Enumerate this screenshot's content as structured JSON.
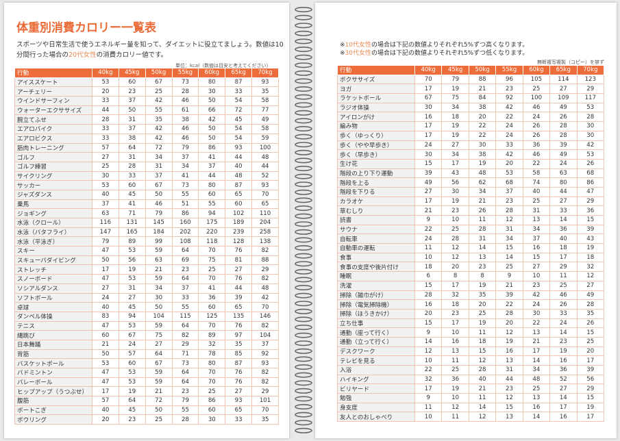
{
  "left_page": {
    "title": "体重別消費カロリー一覧表",
    "intro": [
      "スポーツや日常生活で使うエネルギー量を知って、ダイエットに役立てましょう。数値は10分間行った場合の",
      "20代女性",
      "の消費カロリー値です。"
    ],
    "unit": "単位：kcal（数値は目安と考えてください）",
    "table": {
      "header": [
        "行動",
        "40kg",
        "45kg",
        "50kg",
        "55kg",
        "60kg",
        "65kg",
        "70kg"
      ],
      "rows": [
        [
          "アイススケート",
          53,
          60,
          67,
          73,
          80,
          87,
          93
        ],
        [
          "アーチェリー",
          20,
          23,
          25,
          28,
          30,
          33,
          35
        ],
        [
          "ウインドサーフィン",
          33,
          37,
          42,
          46,
          50,
          54,
          58
        ],
        [
          "ウォーターエクササイズ",
          44,
          50,
          55,
          61,
          66,
          72,
          77
        ],
        [
          "腕立てふせ",
          28,
          31,
          35,
          38,
          42,
          45,
          49
        ],
        [
          "エアロバイク",
          33,
          37,
          42,
          46,
          50,
          54,
          58
        ],
        [
          "エアロビクス",
          33,
          38,
          42,
          46,
          50,
          54,
          59
        ],
        [
          "筋肉トレーニング",
          57,
          64,
          72,
          79,
          86,
          93,
          100
        ],
        [
          "ゴルフ",
          27,
          31,
          34,
          37,
          41,
          44,
          48
        ],
        [
          "ゴルフ練習",
          25,
          28,
          31,
          34,
          37,
          40,
          44
        ],
        [
          "サイクリング",
          30,
          33,
          37,
          41,
          44,
          48,
          52
        ],
        [
          "サッカー",
          53,
          60,
          67,
          73,
          80,
          87,
          93
        ],
        [
          "ジャズダンス",
          40,
          45,
          50,
          55,
          60,
          65,
          70
        ],
        [
          "乗馬",
          37,
          41,
          46,
          51,
          55,
          60,
          65
        ],
        [
          "ジョギング",
          63,
          71,
          79,
          86,
          94,
          102,
          110
        ],
        [
          "水泳（クロール）",
          116,
          131,
          145,
          160,
          175,
          189,
          204
        ],
        [
          "水泳（バタフライ）",
          147,
          165,
          184,
          202,
          220,
          239,
          258
        ],
        [
          "水泳（平泳ぎ）",
          79,
          89,
          99,
          108,
          118,
          128,
          138
        ],
        [
          "スキー",
          47,
          53,
          59,
          64,
          70,
          76,
          82
        ],
        [
          "スキューバダイビング",
          50,
          56,
          63,
          69,
          75,
          81,
          88
        ],
        [
          "ストレッチ",
          17,
          19,
          21,
          23,
          25,
          27,
          29
        ],
        [
          "スノーボード",
          47,
          53,
          59,
          64,
          70,
          76,
          82
        ],
        [
          "ソシアルダンス",
          27,
          31,
          34,
          37,
          41,
          44,
          48
        ],
        [
          "ソフトボール",
          24,
          27,
          30,
          33,
          36,
          39,
          42
        ],
        [
          "卓球",
          40,
          45,
          50,
          55,
          60,
          65,
          70
        ],
        [
          "ダンベル体操",
          83,
          94,
          104,
          115,
          125,
          135,
          146
        ],
        [
          "テニス",
          47,
          53,
          59,
          64,
          70,
          76,
          82
        ],
        [
          "縄跳び",
          60,
          67,
          75,
          82,
          89,
          97,
          104
        ],
        [
          "日本舞踊",
          21,
          24,
          27,
          29,
          32,
          35,
          37
        ],
        [
          "背筋",
          50,
          57,
          64,
          71,
          78,
          85,
          92
        ],
        [
          "バスケットボール",
          53,
          60,
          67,
          73,
          80,
          87,
          93
        ],
        [
          "バドミントン",
          47,
          53,
          59,
          64,
          70,
          76,
          82
        ],
        [
          "バレーボール",
          47,
          53,
          59,
          64,
          70,
          76,
          82
        ],
        [
          "ヒップアップ（うつぶせ）",
          17,
          19,
          21,
          23,
          25,
          27,
          29
        ],
        [
          "腹筋",
          57,
          64,
          72,
          79,
          86,
          93,
          101
        ],
        [
          "ボートこぎ",
          40,
          45,
          50,
          55,
          60,
          65,
          70
        ],
        [
          "ボウリング",
          20,
          23,
          25,
          28,
          30,
          33,
          35
        ]
      ]
    }
  },
  "right_page": {
    "notes": [
      [
        "※",
        "10代女性",
        "の場合は下記の数値よりそれぞれ5%ずつ高くなります。"
      ],
      [
        "※",
        "30代女性",
        "の場合は下記の数値よりそれぞれ5%ずつ低くなります。"
      ]
    ],
    "copyright": "無断複写複製（コピー）を禁ず",
    "table": {
      "header": [
        "行動",
        "40kg",
        "45kg",
        "50kg",
        "55kg",
        "60kg",
        "65kg",
        "70kg"
      ],
      "rows": [
        [
          "ボクササイズ",
          70,
          79,
          88,
          96,
          105,
          114,
          123
        ],
        [
          "ヨガ",
          17,
          19,
          21,
          23,
          25,
          27,
          29
        ],
        [
          "ラケットボール",
          67,
          75,
          84,
          92,
          100,
          109,
          117
        ],
        [
          "ラジオ体操",
          30,
          34,
          38,
          42,
          46,
          49,
          53
        ],
        [
          "アイロンがけ",
          16,
          18,
          20,
          22,
          24,
          26,
          28
        ],
        [
          "編み物",
          17,
          19,
          22,
          24,
          26,
          28,
          30
        ],
        [
          "歩く（ゆっくり）",
          17,
          19,
          22,
          24,
          26,
          28,
          30
        ],
        [
          "歩く（やや早歩き）",
          24,
          27,
          30,
          33,
          36,
          39,
          42
        ],
        [
          "歩く（早歩き）",
          30,
          34,
          38,
          42,
          46,
          49,
          53
        ],
        [
          "生け花",
          15,
          17,
          19,
          20,
          22,
          24,
          26
        ],
        [
          "階段の上り下り運動",
          39,
          43,
          48,
          53,
          58,
          63,
          68
        ],
        [
          "階段を上る",
          49,
          56,
          62,
          68,
          74,
          80,
          86
        ],
        [
          "階段を下りる",
          27,
          30,
          34,
          37,
          40,
          44,
          47
        ],
        [
          "カラオケ",
          17,
          19,
          21,
          23,
          25,
          27,
          29
        ],
        [
          "草むしり",
          21,
          23,
          26,
          28,
          31,
          33,
          36
        ],
        [
          "読書",
          9,
          10,
          11,
          12,
          13,
          14,
          15
        ],
        [
          "サウナ",
          22,
          25,
          28,
          31,
          34,
          36,
          39
        ],
        [
          "自転車",
          24,
          28,
          31,
          34,
          37,
          40,
          43
        ],
        [
          "自動車の運転",
          11,
          12,
          14,
          15,
          16,
          18,
          19
        ],
        [
          "食事",
          10,
          12,
          13,
          14,
          15,
          17,
          18
        ],
        [
          "食事の支度や後片付け",
          18,
          20,
          23,
          25,
          27,
          29,
          32
        ],
        [
          "睡眠",
          6,
          8,
          8,
          9,
          10,
          11,
          12
        ],
        [
          "洗濯",
          15,
          17,
          19,
          21,
          23,
          25,
          27
        ],
        [
          "掃除（雑巾がけ）",
          28,
          32,
          35,
          39,
          42,
          46,
          49
        ],
        [
          "掃除（電気掃除機）",
          16,
          18,
          20,
          22,
          24,
          26,
          28
        ],
        [
          "掃除（ほうきかけ）",
          20,
          23,
          25,
          28,
          30,
          33,
          35
        ],
        [
          "立ち仕事",
          15,
          17,
          19,
          20,
          22,
          24,
          26
        ],
        [
          "通勤（座って行く）",
          9,
          10,
          11,
          12,
          13,
          14,
          15
        ],
        [
          "通勤（立って行く）",
          14,
          16,
          18,
          19,
          21,
          23,
          25
        ],
        [
          "デスクワーク",
          12,
          13,
          15,
          16,
          17,
          19,
          20
        ],
        [
          "テレビを見る",
          10,
          11,
          12,
          13,
          14,
          16,
          17
        ],
        [
          "入浴",
          22,
          25,
          28,
          31,
          34,
          36,
          39
        ],
        [
          "ハイキング",
          32,
          36,
          40,
          44,
          48,
          52,
          56
        ],
        [
          "ビリヤード",
          17,
          19,
          21,
          23,
          25,
          27,
          29
        ],
        [
          "勉強",
          9,
          10,
          11,
          12,
          13,
          14,
          15
        ],
        [
          "身支度",
          11,
          12,
          14,
          15,
          16,
          17,
          19
        ],
        [
          "友人とのおしゃべり",
          10,
          11,
          12,
          13,
          14,
          16,
          17
        ]
      ]
    }
  }
}
